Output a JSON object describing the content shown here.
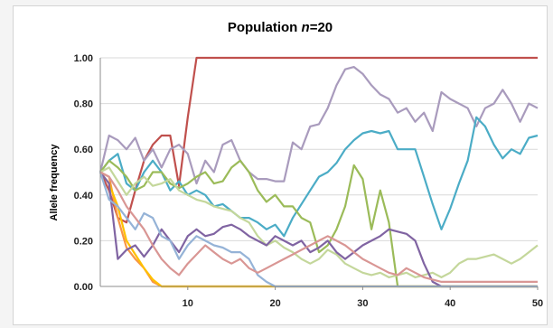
{
  "chart_data": {
    "type": "line",
    "title_main": "Population ",
    "title_n": "n",
    "title_rest": "=20",
    "ylabel": "Allele frequency",
    "xlabel": "",
    "xlim": [
      0,
      50
    ],
    "ylim": [
      0,
      1
    ],
    "x_ticks": [
      10,
      20,
      30,
      40,
      50
    ],
    "y_ticks": [
      "0.00",
      "0.20",
      "0.40",
      "0.60",
      "0.80",
      "1.00"
    ],
    "grid": true,
    "legend": "none",
    "x": [
      0,
      1,
      2,
      3,
      4,
      5,
      6,
      7,
      8,
      9,
      10,
      11,
      12,
      13,
      14,
      15,
      16,
      17,
      18,
      19,
      20,
      21,
      22,
      23,
      24,
      25,
      26,
      27,
      28,
      29,
      30,
      31,
      32,
      33,
      34,
      35,
      36,
      37,
      38,
      39,
      40,
      41,
      42,
      43,
      44,
      45,
      46,
      47,
      48,
      49,
      50
    ],
    "series": [
      {
        "color": "#c0504d",
        "values": [
          0.5,
          0.42,
          0.3,
          0.28,
          0.42,
          0.55,
          0.62,
          0.66,
          0.66,
          0.44,
          0.74,
          1,
          1,
          1,
          1,
          1,
          1,
          1,
          1,
          1,
          1,
          1,
          1,
          1,
          1,
          1,
          1,
          1,
          1,
          1,
          1,
          1,
          1,
          1,
          1,
          1,
          1,
          1,
          1,
          1,
          1,
          1,
          1,
          1,
          1,
          1,
          1,
          1,
          1,
          1,
          1
        ]
      },
      {
        "color": "#f79646",
        "values": [
          0.5,
          0.48,
          0.3,
          0.17,
          0.12,
          0.08,
          0.02,
          0,
          0,
          0,
          0,
          0,
          0,
          0,
          0,
          0,
          0,
          0,
          0,
          0,
          0,
          0,
          0,
          0,
          0,
          0,
          0,
          0,
          0,
          0,
          0,
          0,
          0,
          0,
          0,
          0,
          0,
          0,
          0,
          0,
          0,
          0,
          0,
          0,
          0,
          0,
          0,
          0,
          0,
          0,
          0
        ]
      },
      {
        "color": "#ffc000",
        "values": [
          0.5,
          0.45,
          0.35,
          0.2,
          0.14,
          0.08,
          0.03,
          0,
          0,
          0,
          0,
          0,
          0,
          0,
          0,
          0,
          0,
          0,
          0,
          0,
          0,
          0,
          0,
          0,
          0,
          0,
          0,
          0,
          0,
          0,
          0,
          0,
          0,
          0,
          0,
          0,
          0,
          0,
          0,
          0,
          0,
          0,
          0,
          0,
          0,
          0,
          0,
          0,
          0,
          0,
          0
        ]
      },
      {
        "color": "#a99bbd",
        "values": [
          0.5,
          0.66,
          0.64,
          0.6,
          0.65,
          0.55,
          0.6,
          0.52,
          0.6,
          0.62,
          0.58,
          0.45,
          0.55,
          0.5,
          0.62,
          0.64,
          0.55,
          0.5,
          0.47,
          0.47,
          0.46,
          0.46,
          0.63,
          0.6,
          0.7,
          0.71,
          0.78,
          0.88,
          0.95,
          0.96,
          0.93,
          0.88,
          0.84,
          0.82,
          0.76,
          0.78,
          0.72,
          0.76,
          0.68,
          0.85,
          0.82,
          0.8,
          0.78,
          0.7,
          0.78,
          0.8,
          0.86,
          0.8,
          0.72,
          0.8,
          0.78
        ]
      },
      {
        "color": "#4bacc6",
        "values": [
          0.5,
          0.55,
          0.58,
          0.45,
          0.42,
          0.5,
          0.55,
          0.5,
          0.42,
          0.46,
          0.4,
          0.42,
          0.4,
          0.35,
          0.36,
          0.33,
          0.3,
          0.3,
          0.28,
          0.25,
          0.27,
          0.22,
          0.3,
          0.36,
          0.42,
          0.48,
          0.5,
          0.54,
          0.6,
          0.64,
          0.67,
          0.68,
          0.67,
          0.68,
          0.6,
          0.6,
          0.6,
          0.48,
          0.36,
          0.25,
          0.34,
          0.45,
          0.55,
          0.74,
          0.7,
          0.62,
          0.56,
          0.6,
          0.58,
          0.65,
          0.66
        ]
      },
      {
        "color": "#9bbb59",
        "values": [
          0.5,
          0.55,
          0.52,
          0.48,
          0.42,
          0.44,
          0.5,
          0.5,
          0.45,
          0.43,
          0.45,
          0.48,
          0.5,
          0.45,
          0.46,
          0.52,
          0.55,
          0.5,
          0.42,
          0.37,
          0.4,
          0.35,
          0.35,
          0.3,
          0.28,
          0.15,
          0.18,
          0.25,
          0.35,
          0.53,
          0.47,
          0.25,
          0.42,
          0.28,
          0,
          0,
          0,
          0,
          0,
          0,
          0,
          0,
          0,
          0,
          0,
          0,
          0,
          0,
          0,
          0,
          0
        ]
      },
      {
        "color": "#c4d79b",
        "values": [
          0.5,
          0.52,
          0.46,
          0.4,
          0.45,
          0.48,
          0.44,
          0.45,
          0.47,
          0.42,
          0.4,
          0.38,
          0.37,
          0.35,
          0.34,
          0.33,
          0.3,
          0.28,
          0.22,
          0.18,
          0.2,
          0.17,
          0.15,
          0.12,
          0.1,
          0.12,
          0.16,
          0.14,
          0.1,
          0.08,
          0.06,
          0.05,
          0.06,
          0.04,
          0.05,
          0.06,
          0.04,
          0.05,
          0.06,
          0.04,
          0.06,
          0.1,
          0.12,
          0.12,
          0.13,
          0.14,
          0.12,
          0.1,
          0.12,
          0.15,
          0.18
        ]
      },
      {
        "color": "#8064a2",
        "values": [
          0.5,
          0.45,
          0.12,
          0.16,
          0.18,
          0.13,
          0.18,
          0.25,
          0.2,
          0.15,
          0.22,
          0.25,
          0.22,
          0.23,
          0.26,
          0.27,
          0.25,
          0.22,
          0.2,
          0.18,
          0.22,
          0.2,
          0.18,
          0.2,
          0.15,
          0.17,
          0.2,
          0.15,
          0.12,
          0.15,
          0.18,
          0.2,
          0.22,
          0.25,
          0.24,
          0.23,
          0.2,
          0.1,
          0.02,
          0,
          0,
          0,
          0,
          0,
          0,
          0,
          0,
          0,
          0,
          0,
          0
        ]
      },
      {
        "color": "#95b3d7",
        "values": [
          0.5,
          0.38,
          0.35,
          0.3,
          0.25,
          0.32,
          0.3,
          0.22,
          0.2,
          0.12,
          0.18,
          0.22,
          0.2,
          0.18,
          0.17,
          0.15,
          0.15,
          0.12,
          0.05,
          0.02,
          0,
          0,
          0,
          0,
          0,
          0,
          0,
          0,
          0,
          0,
          0,
          0,
          0,
          0,
          0,
          0,
          0,
          0,
          0,
          0,
          0,
          0,
          0,
          0,
          0,
          0,
          0,
          0,
          0,
          0,
          0
        ]
      },
      {
        "color": "#d99694",
        "values": [
          0.5,
          0.48,
          0.42,
          0.35,
          0.3,
          0.25,
          0.18,
          0.12,
          0.08,
          0.05,
          0.1,
          0.14,
          0.18,
          0.15,
          0.12,
          0.1,
          0.12,
          0.08,
          0.06,
          0.08,
          0.1,
          0.12,
          0.14,
          0.16,
          0.18,
          0.2,
          0.22,
          0.2,
          0.18,
          0.15,
          0.12,
          0.1,
          0.08,
          0.06,
          0.05,
          0.08,
          0.06,
          0.04,
          0.03,
          0.02,
          0.02,
          0.02,
          0.02,
          0.02,
          0.02,
          0.02,
          0.02,
          0.02,
          0.02,
          0.02,
          0.02
        ]
      }
    ]
  }
}
